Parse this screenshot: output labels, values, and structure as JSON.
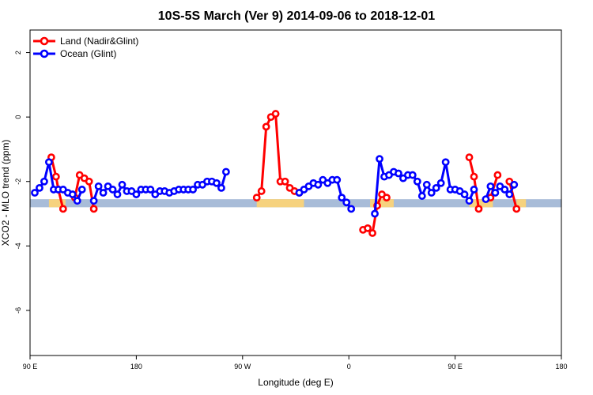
{
  "chart_data": {
    "type": "line",
    "title": "10S-5S March (Ver 9)   2014-09-06 to 2018-12-01",
    "xlabel": "Longitude (deg E)",
    "ylabel": "XCO2 - MLO trend (ppm)",
    "xlim": [
      90,
      540
    ],
    "ylim": [
      -7.4,
      2.7
    ],
    "x_ticks": [
      {
        "value": 90,
        "label": "90 E"
      },
      {
        "value": 180,
        "label": "180"
      },
      {
        "value": 270,
        "label": "90 W"
      },
      {
        "value": 360,
        "label": "0"
      },
      {
        "value": 450,
        "label": "90 E"
      },
      {
        "value": 540,
        "label": "180"
      }
    ],
    "y_ticks": [
      {
        "value": 2,
        "label": "2"
      },
      {
        "value": 0,
        "label": "0"
      },
      {
        "value": -2,
        "label": "-2"
      },
      {
        "value": -4,
        "label": "-4"
      },
      {
        "value": -6,
        "label": "-6"
      }
    ],
    "grid": false,
    "legend_position": "top-left",
    "band": {
      "ymin": -2.8,
      "ymax": -2.55,
      "color": "#a8bcd8",
      "land_color": "#f6d27e"
    },
    "land_spans": [
      [
        106,
        120
      ],
      [
        282,
        322
      ],
      [
        378,
        398
      ],
      [
        462,
        482
      ],
      [
        502,
        510
      ]
    ],
    "series": [
      {
        "name": "Land (Nadir&Glint)",
        "color": "#ff0000",
        "segments": [
          [
            [
              108,
              -1.25
            ],
            [
              112,
              -1.85
            ],
            [
              114,
              -2.25
            ],
            [
              118,
              -2.85
            ]
          ],
          [
            [
              128,
              -2.5
            ],
            [
              132,
              -1.8
            ],
            [
              136,
              -1.9
            ],
            [
              140,
              -2.0
            ],
            [
              144,
              -2.85
            ]
          ],
          [
            [
              282,
              -2.5
            ],
            [
              286,
              -2.3
            ],
            [
              290,
              -0.3
            ],
            [
              294,
              0.0
            ],
            [
              298,
              0.1
            ],
            [
              302,
              -2.0
            ],
            [
              306,
              -2.0
            ],
            [
              310,
              -2.2
            ],
            [
              314,
              -2.3
            ],
            [
              318,
              -2.35
            ]
          ],
          [
            [
              372,
              -3.5
            ],
            [
              376,
              -3.45
            ],
            [
              380,
              -3.6
            ],
            [
              384,
              -2.75
            ],
            [
              388,
              -2.4
            ],
            [
              392,
              -2.5
            ]
          ],
          [
            [
              462,
              -1.25
            ],
            [
              466,
              -1.85
            ],
            [
              470,
              -2.85
            ]
          ],
          [
            [
              480,
              -2.5
            ],
            [
              486,
              -1.8
            ]
          ],
          [
            [
              496,
              -2.0
            ],
            [
              502,
              -2.85
            ]
          ]
        ]
      },
      {
        "name": "Ocean (Glint)",
        "color": "#0000ff",
        "segments": [
          [
            [
              94,
              -2.35
            ],
            [
              98,
              -2.2
            ],
            [
              102,
              -2.0
            ],
            [
              106,
              -1.4
            ],
            [
              110,
              -2.25
            ],
            [
              114,
              -2.25
            ],
            [
              118,
              -2.25
            ],
            [
              122,
              -2.35
            ],
            [
              126,
              -2.4
            ],
            [
              130,
              -2.6
            ],
            [
              134,
              -2.25
            ]
          ],
          [
            [
              144,
              -2.6
            ],
            [
              148,
              -2.15
            ],
            [
              152,
              -2.35
            ],
            [
              156,
              -2.15
            ],
            [
              160,
              -2.25
            ],
            [
              164,
              -2.4
            ],
            [
              168,
              -2.1
            ],
            [
              172,
              -2.3
            ],
            [
              176,
              -2.3
            ],
            [
              180,
              -2.4
            ],
            [
              184,
              -2.25
            ],
            [
              188,
              -2.25
            ],
            [
              192,
              -2.25
            ],
            [
              196,
              -2.4
            ],
            [
              200,
              -2.3
            ],
            [
              204,
              -2.3
            ],
            [
              208,
              -2.35
            ],
            [
              212,
              -2.3
            ],
            [
              216,
              -2.25
            ],
            [
              220,
              -2.25
            ],
            [
              224,
              -2.25
            ],
            [
              228,
              -2.25
            ],
            [
              232,
              -2.1
            ],
            [
              236,
              -2.1
            ],
            [
              240,
              -2.0
            ],
            [
              244,
              -2.0
            ],
            [
              248,
              -2.05
            ],
            [
              252,
              -2.2
            ],
            [
              256,
              -1.7
            ]
          ],
          [
            [
              318,
              -2.35
            ],
            [
              322,
              -2.25
            ],
            [
              326,
              -2.15
            ],
            [
              330,
              -2.05
            ],
            [
              334,
              -2.1
            ],
            [
              338,
              -1.95
            ],
            [
              342,
              -2.05
            ],
            [
              346,
              -1.95
            ],
            [
              350,
              -1.95
            ],
            [
              354,
              -2.5
            ],
            [
              358,
              -2.65
            ],
            [
              362,
              -2.85
            ]
          ],
          [
            [
              382,
              -3.0
            ],
            [
              386,
              -1.3
            ],
            [
              390,
              -1.85
            ],
            [
              394,
              -1.8
            ],
            [
              398,
              -1.7
            ],
            [
              402,
              -1.75
            ],
            [
              406,
              -1.9
            ],
            [
              410,
              -1.8
            ],
            [
              414,
              -1.8
            ],
            [
              418,
              -2.0
            ],
            [
              422,
              -2.45
            ],
            [
              426,
              -2.1
            ],
            [
              430,
              -2.35
            ],
            [
              434,
              -2.2
            ],
            [
              438,
              -2.05
            ],
            [
              442,
              -1.4
            ],
            [
              446,
              -2.25
            ],
            [
              450,
              -2.25
            ],
            [
              454,
              -2.3
            ],
            [
              458,
              -2.4
            ],
            [
              462,
              -2.6
            ],
            [
              466,
              -2.25
            ]
          ],
          [
            [
              476,
              -2.55
            ],
            [
              480,
              -2.15
            ],
            [
              484,
              -2.35
            ],
            [
              488,
              -2.15
            ],
            [
              492,
              -2.25
            ],
            [
              496,
              -2.4
            ],
            [
              500,
              -2.1
            ]
          ]
        ]
      }
    ]
  }
}
